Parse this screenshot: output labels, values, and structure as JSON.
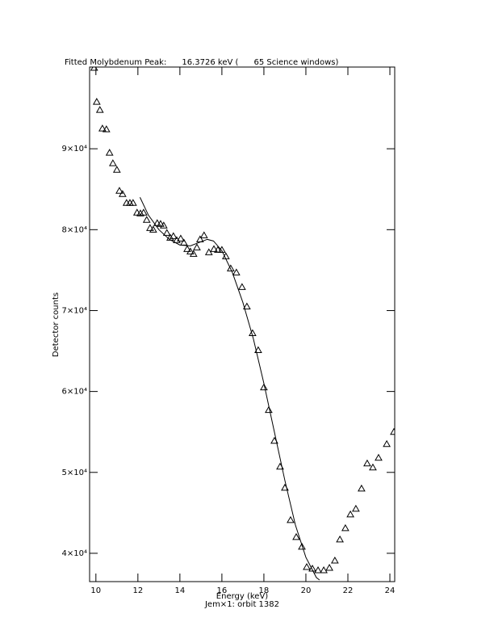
{
  "chart_data": {
    "type": "line",
    "title": "Fitted Molybdenum Peak:      16.3726 keV (      65 Science windows)",
    "x_label": "Energy (keV)",
    "y_label": "Detector counts",
    "subtitle": "Jem×1: orbit 1382",
    "xlim": [
      9.7,
      24.23
    ],
    "ylim": [
      36500,
      100100
    ],
    "xticks": [
      10,
      12,
      14,
      16,
      18,
      20,
      22,
      24
    ],
    "yticks": [
      {
        "value": 40000,
        "label": "4×10⁴"
      },
      {
        "value": 50000,
        "label": "5×10⁴"
      },
      {
        "value": 60000,
        "label": "6×10⁴"
      },
      {
        "value": 70000,
        "label": "7×10⁴"
      },
      {
        "value": 80000,
        "label": "8×10⁴"
      },
      {
        "value": 90000,
        "label": "9×10⁴"
      }
    ],
    "grid": false,
    "series": [
      {
        "marker": "triangle",
        "color": "#000000",
        "x": [
          9.92,
          10.04,
          10.19,
          10.31,
          10.5,
          10.65,
          10.81,
          11.0,
          11.12,
          11.27,
          11.46,
          11.62,
          11.77,
          11.96,
          12.12,
          12.27,
          12.42,
          12.58,
          12.73,
          12.92,
          13.08,
          13.23,
          13.38,
          13.54,
          13.69,
          13.85,
          14.04,
          14.19,
          14.35,
          14.5,
          14.65,
          14.81,
          14.96,
          15.15,
          15.38,
          15.62,
          15.81,
          16.0,
          16.19,
          16.42,
          16.69,
          16.96,
          17.19,
          17.46,
          17.73,
          18.0,
          18.23,
          18.5,
          18.77,
          19.0,
          19.27,
          19.54,
          19.81,
          20.04,
          20.31,
          20.58,
          20.85,
          21.12,
          21.38,
          21.62,
          21.88,
          22.12,
          22.38,
          22.65,
          22.92,
          23.19,
          23.46,
          23.85,
          24.19
        ],
        "values": [
          100000,
          95800,
          94800,
          92500,
          92400,
          89500,
          88200,
          87400,
          84800,
          84400,
          83300,
          83300,
          83300,
          82100,
          82000,
          82100,
          81200,
          80200,
          80000,
          80800,
          80700,
          80500,
          79600,
          79000,
          79200,
          78700,
          78900,
          78400,
          77600,
          77300,
          77000,
          77800,
          78800,
          79300,
          77200,
          77600,
          77500,
          77500,
          76700,
          75200,
          74700,
          72900,
          70500,
          67200,
          65100,
          60500,
          57700,
          53900,
          50700,
          48100,
          44100,
          42000,
          40800,
          38300,
          38100,
          37900,
          37900,
          38200,
          39100,
          41700,
          43100,
          44800,
          45500,
          48000,
          51100,
          50600,
          51800,
          53500,
          55000
        ]
      },
      {
        "marker": "none",
        "color": "#000000",
        "x": [
          12.1,
          12.5,
          13.0,
          13.5,
          14.0,
          14.5,
          15.0,
          15.3,
          15.6,
          16.0,
          16.5,
          17.0,
          17.5,
          18.0,
          18.5,
          19.0,
          19.5,
          20.0,
          20.5,
          20.65
        ],
        "values": [
          84000,
          81800,
          80000,
          78800,
          78100,
          78000,
          78500,
          78800,
          78600,
          77400,
          74700,
          71000,
          66500,
          61000,
          55000,
          49000,
          43500,
          39500,
          37000,
          36700
        ]
      }
    ]
  }
}
